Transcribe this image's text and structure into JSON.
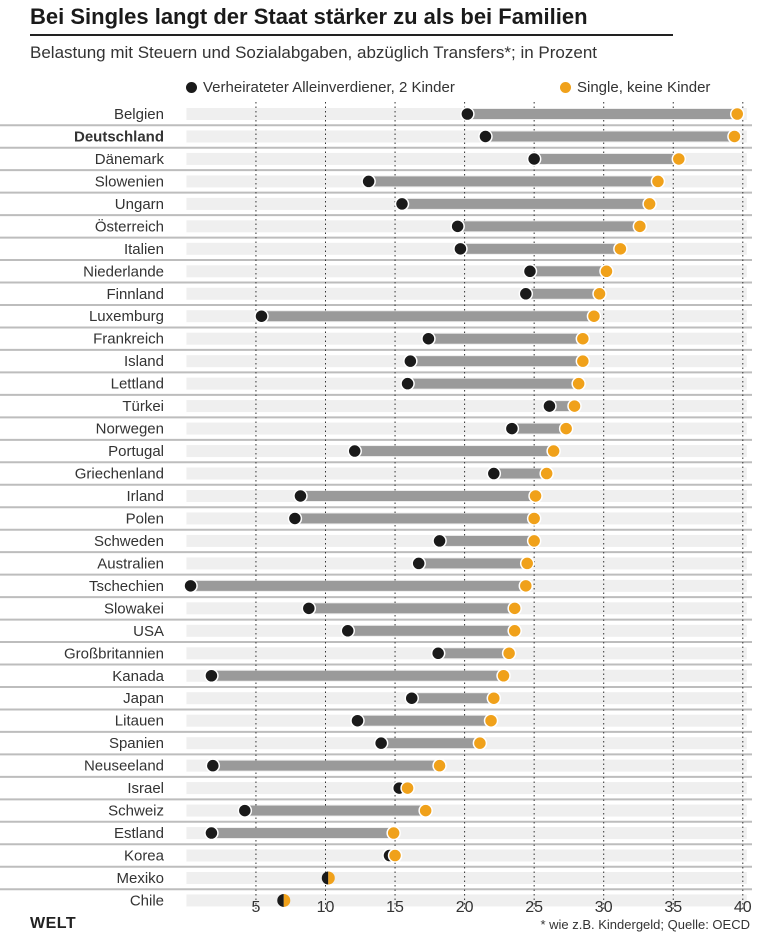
{
  "title": "Bei Singles langt der Staat stärker zu als bei Familien",
  "subtitle": "Belastung mit Steuern und Sozialabgaben, abzüglich Transfers*; in Prozent",
  "footnote": "* wie z.B. Kindergeld; Quelle: OECD",
  "brand": "WELT",
  "colors": {
    "married": "#1a1a1a",
    "single": "#f0a11a",
    "bar": "#9a9a9a",
    "track": "#efefef",
    "separator": "#bdbdbd"
  },
  "chart_data": {
    "type": "dumbbell",
    "xlim": [
      0,
      40
    ],
    "xticks": [
      5,
      10,
      15,
      20,
      25,
      30,
      35,
      40
    ],
    "grid": "dotted vertical",
    "legend_placement": "top",
    "highlight": "Deutschland",
    "series": [
      {
        "name": "Verheirateter Alleinverdiener, 2 Kinder",
        "color": "#1a1a1a"
      },
      {
        "name": "Single, keine Kinder",
        "color": "#f0a11a"
      }
    ],
    "categories": [
      "Belgien",
      "Deutschland",
      "Dänemark",
      "Slowenien",
      "Ungarn",
      "Österreich",
      "Italien",
      "Niederlande",
      "Finnland",
      "Luxemburg",
      "Frankreich",
      "Island",
      "Lettland",
      "Türkei",
      "Norwegen",
      "Portugal",
      "Griechenland",
      "Irland",
      "Polen",
      "Schweden",
      "Australien",
      "Tschechien",
      "Slowakei",
      "USA",
      "Großbritannien",
      "Kanada",
      "Japan",
      "Litauen",
      "Spanien",
      "Neuseeland",
      "Israel",
      "Schweiz",
      "Estland",
      "Korea",
      "Mexiko",
      "Chile"
    ],
    "married": [
      20.2,
      21.5,
      25.0,
      13.1,
      15.5,
      19.5,
      19.7,
      24.7,
      24.4,
      5.4,
      17.4,
      16.1,
      15.9,
      26.1,
      23.4,
      12.1,
      22.1,
      8.2,
      7.8,
      18.2,
      16.7,
      0.3,
      8.8,
      11.6,
      18.1,
      1.8,
      16.2,
      12.3,
      14.0,
      1.9,
      15.3,
      4.2,
      1.8,
      14.6,
      10.2,
      7.0
    ],
    "single": [
      39.6,
      39.4,
      35.4,
      33.9,
      33.3,
      32.6,
      31.2,
      30.2,
      29.7,
      29.3,
      28.5,
      28.5,
      28.2,
      27.9,
      27.3,
      26.4,
      25.9,
      25.1,
      25.0,
      25.0,
      24.5,
      24.4,
      23.6,
      23.6,
      23.2,
      22.8,
      22.1,
      21.9,
      21.1,
      18.2,
      15.9,
      17.2,
      14.9,
      15.0,
      10.2,
      7.0
    ]
  }
}
